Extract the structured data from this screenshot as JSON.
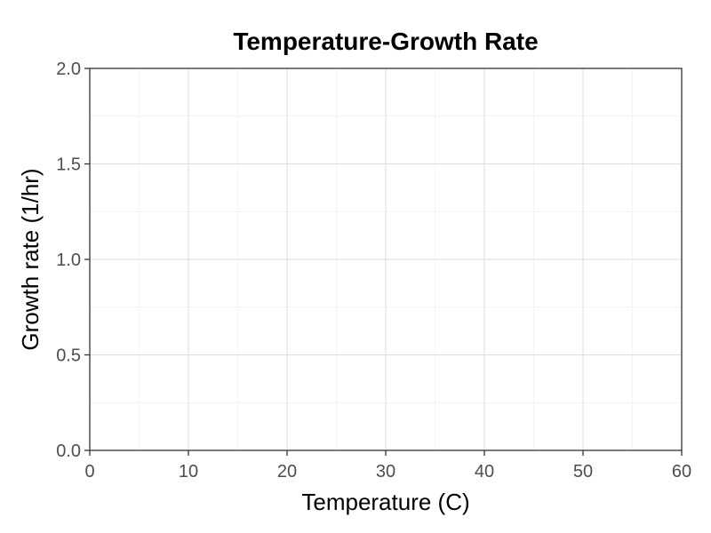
{
  "chart_data": {
    "type": "scatter",
    "title": "Temperature-Growth Rate",
    "xlabel": "Temperature (C)",
    "ylabel": "Growth rate (1/hr)",
    "xlim": [
      0,
      60
    ],
    "ylim": [
      0,
      2
    ],
    "x_ticks": [
      0,
      10,
      20,
      30,
      40,
      50,
      60
    ],
    "y_ticks": [
      0,
      0.5,
      1,
      1.5,
      2
    ],
    "x_tick_labels": [
      "0",
      "10",
      "20",
      "30",
      "40",
      "50",
      "60"
    ],
    "y_tick_labels": [
      "0.0",
      "0.5",
      "1.0",
      "1.5",
      "2.0"
    ],
    "grid": true,
    "series": []
  }
}
